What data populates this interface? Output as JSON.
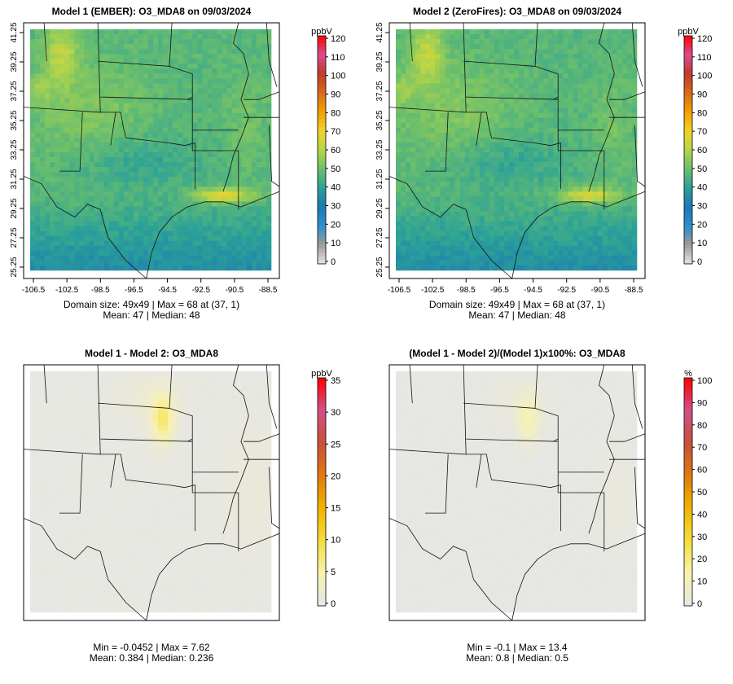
{
  "chart_data": [
    {
      "type": "heatmap",
      "title": "Model 1 (EMBER): O3_MDA8 on 09/03/2024",
      "xticks": [
        "-106.5",
        "-102.5",
        "-98.5",
        "-96.5",
        "-94.5",
        "-92.5",
        "-90.5",
        "-88.5"
      ],
      "yticks": [
        "25.25",
        "27.25",
        "29.25",
        "31.25",
        "33.25",
        "35.25",
        "37.25",
        "39.25",
        "41.25"
      ],
      "colorbar": {
        "unit": "ppbV",
        "ticks": [
          "120",
          "110",
          "100",
          "90",
          "80",
          "70",
          "60",
          "50",
          "40",
          "30",
          "20",
          "10",
          "0"
        ],
        "range": [
          0,
          120
        ]
      },
      "stats": [
        "Domain size: 49x49 | Max = 68 at (37, 1)",
        "Mean: 47 |  Median: 48"
      ],
      "grid_size": [
        49,
        49
      ],
      "max": 68,
      "mean": 47,
      "median": 48
    },
    {
      "type": "heatmap",
      "title": "Model 2 (ZeroFires): O3_MDA8 on 09/03/2024",
      "xticks": [
        "-106.5",
        "-102.5",
        "-98.5",
        "-96.5",
        "-94.5",
        "-92.5",
        "-90.5",
        "-88.5"
      ],
      "yticks": [
        "25.25",
        "27.25",
        "29.25",
        "31.25",
        "33.25",
        "35.25",
        "37.25",
        "39.25",
        "41.25"
      ],
      "colorbar": {
        "unit": "ppbV",
        "ticks": [
          "120",
          "110",
          "100",
          "90",
          "80",
          "70",
          "60",
          "50",
          "40",
          "30",
          "20",
          "10",
          "0"
        ],
        "range": [
          0,
          120
        ]
      },
      "stats": [
        "Domain size: 49x49 | Max = 68 at (37, 1)",
        "Mean: 47 |  Median: 48"
      ],
      "grid_size": [
        49,
        49
      ],
      "max": 68,
      "mean": 47,
      "median": 48
    },
    {
      "type": "heatmap",
      "title": "Model 1 - Model 2: O3_MDA8",
      "colorbar": {
        "unit": "ppbV",
        "ticks": [
          "35",
          "30",
          "25",
          "20",
          "15",
          "10",
          "5",
          "0"
        ],
        "range": [
          0,
          35
        ]
      },
      "stats": [
        "Min = -0.0452 | Max = 7.62",
        "Mean: 0.384 |  Median: 0.236"
      ],
      "min": -0.0452,
      "max": 7.62,
      "mean": 0.384,
      "median": 0.236
    },
    {
      "type": "heatmap",
      "title": "(Model 1 - Model 2)/(Model 1)x100%: O3_MDA8",
      "colorbar": {
        "unit": "%",
        "ticks": [
          "100",
          "90",
          "80",
          "70",
          "60",
          "50",
          "40",
          "30",
          "20",
          "10",
          "0"
        ],
        "range": [
          0,
          100
        ]
      },
      "stats": [
        "Min = -0.1 | Max = 13.4",
        "Mean: 0.8 |  Median: 0.5"
      ],
      "min": -0.1,
      "max": 13.4,
      "mean": 0.8,
      "median": 0.5
    }
  ],
  "colors": {
    "abs_scale": [
      "#e6e6e6",
      "#9a9a9a",
      "#2a8fcf",
      "#1f78b4",
      "#2aa198",
      "#6cbf6c",
      "#b5d54a",
      "#f2d22a",
      "#f0a000",
      "#d76a1a",
      "#c0392b",
      "#d94f8c",
      "#ff0000"
    ],
    "diff_scale": [
      "#e6e6e6",
      "#f7f2b0",
      "#f5de3a",
      "#f0b400",
      "#e07a10",
      "#c8503a",
      "#d2508a",
      "#ff0000"
    ],
    "background": "#e6e6e6"
  }
}
